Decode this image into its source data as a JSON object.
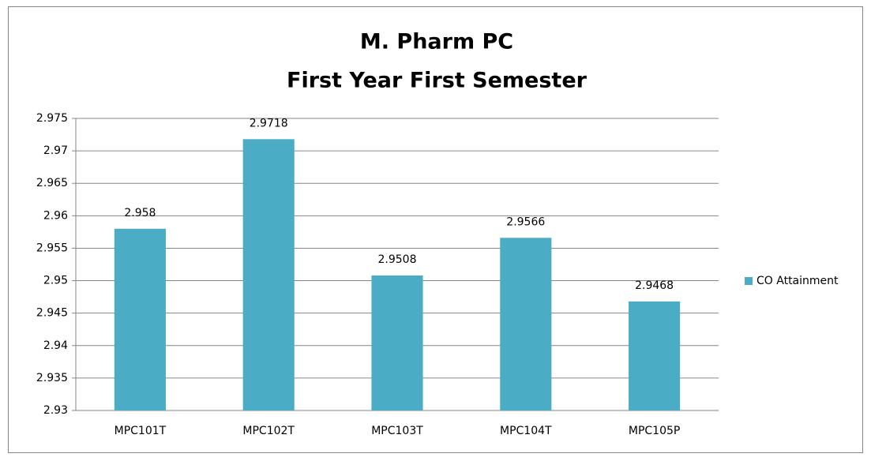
{
  "chart_data": {
    "type": "bar",
    "title": [
      "M. Pharm PC",
      "First Year First Semester"
    ],
    "categories": [
      "MPC101T",
      "MPC102T",
      "MPC103T",
      "MPC104T",
      "MPC105P"
    ],
    "series": [
      {
        "name": "CO Attainment",
        "color": "#4bacc6",
        "values": [
          2.958,
          2.9718,
          2.9508,
          2.9566,
          2.9468
        ]
      }
    ],
    "ylim": [
      2.93,
      2.975
    ],
    "yticks": [
      2.93,
      2.935,
      2.94,
      2.945,
      2.95,
      2.955,
      2.96,
      2.965,
      2.97,
      2.975
    ],
    "grid": true,
    "legend": "right"
  }
}
